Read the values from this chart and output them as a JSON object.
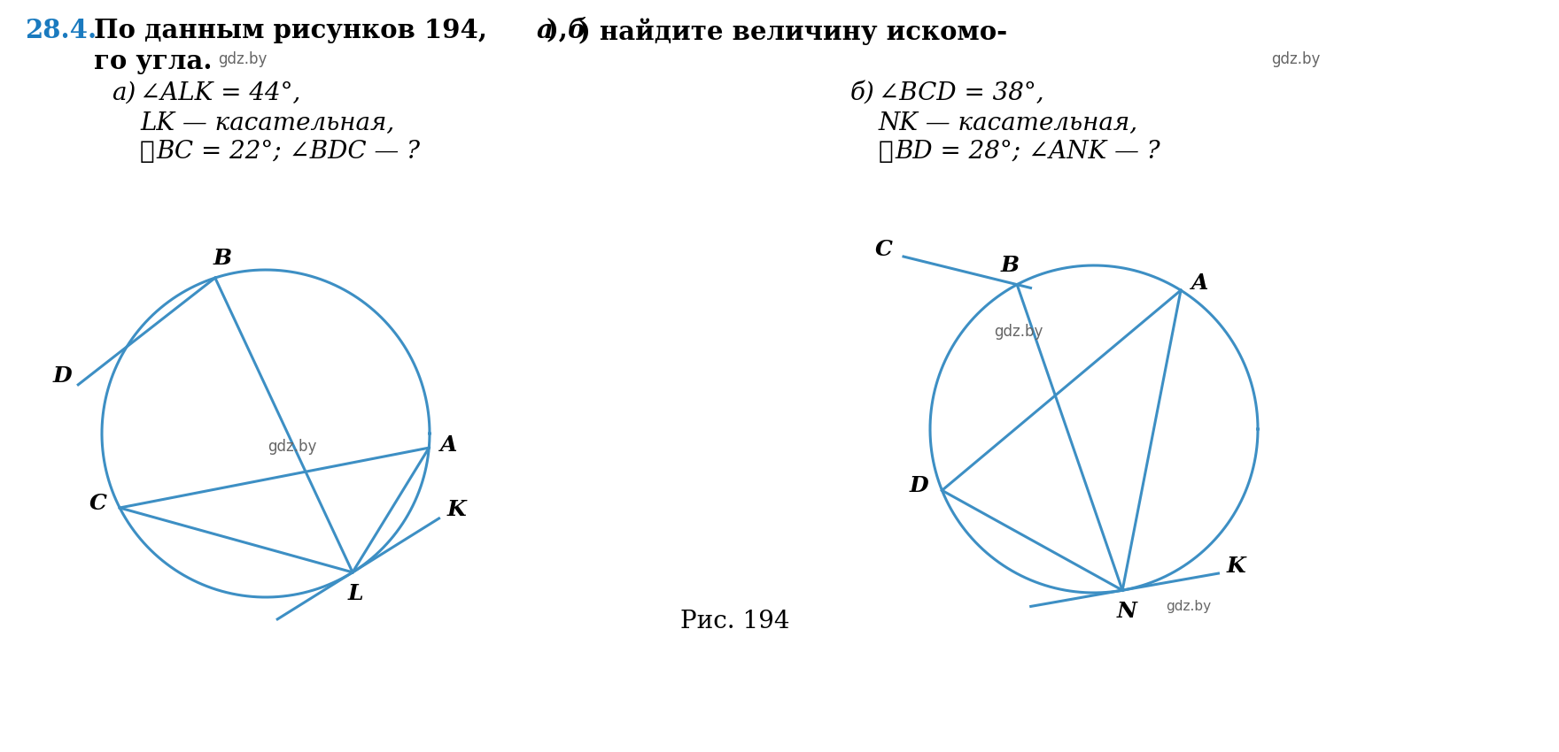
{
  "title_num": "28.4.",
  "title_num_color": "#1a7abf",
  "title_text_1": "По данным рисунков 194, ",
  "title_italic_a": "а",
  "title_text_2": "), ",
  "title_italic_b": "б",
  "title_text_3": ") найдите величину искомо-",
  "title_line2": "го угла.",
  "gdz_by": "gdz.by",
  "part_a_label": "а)",
  "part_a_line1": "∠ALK = 44°,",
  "part_a_line2": "LK — касательная,",
  "part_a_arc": "⌢",
  "part_a_line3_1": "BC = 22°; ∠BDC — ?",
  "part_b_label": "б)",
  "part_b_line1": "∠BCD = 38°,",
  "part_b_line2": "NK — касательная,",
  "part_b_arc": "⌢",
  "part_b_line3_1": "BD = 28°; ∠ANK — ?",
  "fig_caption": "Рис. 194",
  "circle_color": "#3d8fc4",
  "line_color": "#3d8fc4",
  "line_width": 2.2,
  "text_color": "#000000",
  "label_fontsize": 17,
  "body_fontsize": 20,
  "title_fontsize": 21,
  "gdz_color": "#666666",
  "gdz_fontsize": 12
}
